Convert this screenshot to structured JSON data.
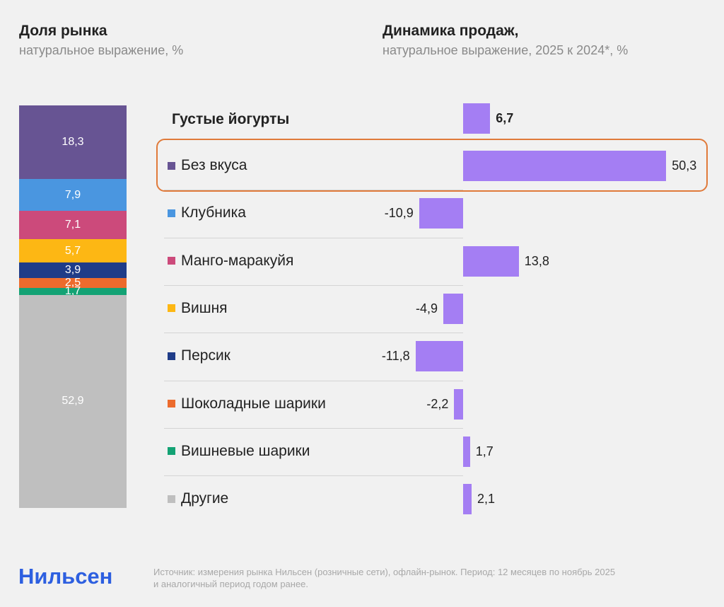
{
  "left_title": "Доля рынка",
  "left_subtitle": "натуральное выражение, %",
  "right_title": "Динамика продаж,",
  "right_subtitle": "натуральное выражение, 2025 к 2024*, %",
  "logo": "Нильсен",
  "source_line1": "Источник: измерения рынка Нильсен (розничные сети), офлайн-рынок. Период: 12 месяцев по ноябрь 2025",
  "source_line2": "и аналогичный период годом ранее.",
  "colors": {
    "bar": "#a47ef3",
    "highlight": "#e07a3a",
    "logo": "#2d5fe0"
  },
  "chart_data": [
    {
      "type": "bar",
      "title": "Доля рынка",
      "subtitle": "натуральное выражение, %",
      "stacked": true,
      "categories": [
        "Без вкуса",
        "Клубника",
        "Манго-маракуйя",
        "Вишня",
        "Персик",
        "Шоколадные шарики",
        "Вишневые шарики",
        "Другие"
      ],
      "values": [
        18.3,
        7.9,
        7.1,
        5.7,
        3.9,
        2.5,
        1.7,
        52.9
      ],
      "labels": [
        "18,3",
        "7,9",
        "7,1",
        "5,7",
        "3,9",
        "2,5",
        "1,7",
        "52,9"
      ],
      "colors": [
        "#675493",
        "#4a96e0",
        "#cc4a7b",
        "#fdb714",
        "#1f3c88",
        "#ec6b2d",
        "#13a274",
        "#bfbfbf"
      ]
    },
    {
      "type": "bar",
      "orientation": "horizontal",
      "title": "Динамика продаж,",
      "subtitle": "натуральное выражение, 2025 к 2024*, %",
      "total": {
        "label": "Густые йогурты",
        "value": 6.7,
        "text": "6,7"
      },
      "categories": [
        "Без вкуса",
        "Клубника",
        "Манго-маракуйя",
        "Вишня",
        "Персик",
        "Шоколадные шарики",
        "Вишневые шарики",
        "Другие"
      ],
      "values": [
        50.3,
        -10.9,
        13.8,
        -4.9,
        -11.8,
        -2.2,
        1.7,
        2.1
      ],
      "labels": [
        "50,3",
        "-10,9",
        "13,8",
        "-4,9",
        "-11,8",
        "-2,2",
        "1,7",
        "2,1"
      ],
      "highlighted": "Без вкуса"
    }
  ]
}
